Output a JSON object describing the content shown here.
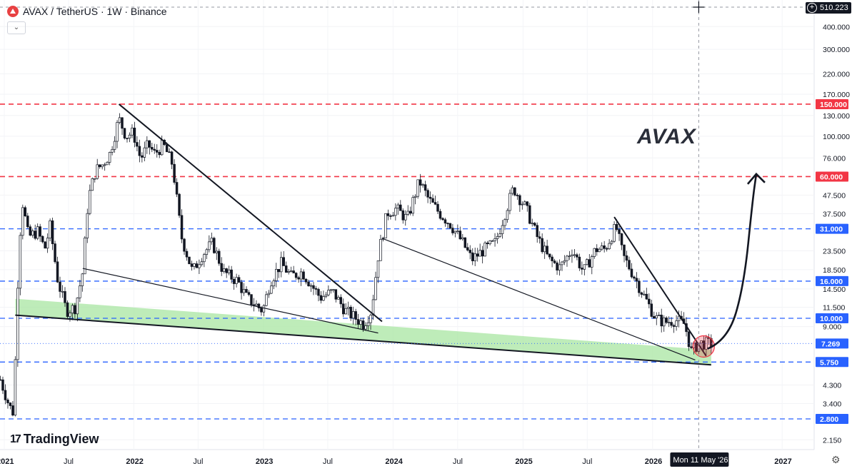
{
  "header": {
    "symbol": "AVAX",
    "separator": "/",
    "quote": "TetherUS",
    "interval": "1W",
    "exchange": "Binance",
    "title": "AVAX / TetherUS · 1W · Binance",
    "logo_color": "#e84142"
  },
  "collapse_label": "⌄",
  "watermark_text": "AVAX",
  "brand": {
    "mark": "17",
    "name": "TradingView"
  },
  "crosshair": {
    "price_label": "510.223",
    "date_label": "Mon 11 May '26"
  },
  "chart_data": {
    "type": "candlestick",
    "symbol": "AVAX/USDT",
    "interval": "1W",
    "y_scale": "log",
    "ylim": [
      1.9,
      560
    ],
    "y_ticks": [
      2.15,
      3.4,
      4.3,
      9.0,
      11.5,
      14.5,
      18.5,
      23.5,
      37.5,
      47.5,
      76.0,
      100.0,
      130.0,
      170.0,
      220.0,
      300.0,
      400.0
    ],
    "y_tick_labels": [
      "2.150",
      "3.400",
      "4.300",
      "9.000",
      "11.500",
      "14.500",
      "18.500",
      "23.500",
      "37.500",
      "47.500",
      "76.000",
      "100.000",
      "130.000",
      "170.000",
      "220.000",
      "300.000",
      "400.000"
    ],
    "xlim": [
      "2020-12-20",
      "2027-04-01"
    ],
    "x_ticks": [
      {
        "date": "2021-01-01",
        "label": "2021",
        "bold": true
      },
      {
        "date": "2021-07-01",
        "label": "Jul",
        "bold": false
      },
      {
        "date": "2022-01-01",
        "label": "2022",
        "bold": true
      },
      {
        "date": "2022-07-01",
        "label": "Jul",
        "bold": false
      },
      {
        "date": "2023-01-01",
        "label": "2023",
        "bold": true
      },
      {
        "date": "2023-07-01",
        "label": "Jul",
        "bold": false
      },
      {
        "date": "2024-01-01",
        "label": "2024",
        "bold": true
      },
      {
        "date": "2024-07-01",
        "label": "Jul",
        "bold": false
      },
      {
        "date": "2025-01-01",
        "label": "2025",
        "bold": true
      },
      {
        "date": "2025-07-01",
        "label": "Jul",
        "bold": false
      },
      {
        "date": "2026-01-01",
        "label": "2026",
        "bold": true
      },
      {
        "date": "2027-01-01",
        "label": "2027",
        "bold": true
      }
    ],
    "price_path": [
      [
        "2020-12-21",
        4.6
      ],
      [
        "2021-01-15",
        3.3
      ],
      [
        "2021-01-28",
        3.0
      ],
      [
        "2021-02-05",
        11.5
      ],
      [
        "2021-02-12",
        24
      ],
      [
        "2021-02-20",
        45
      ],
      [
        "2021-03-10",
        28
      ],
      [
        "2021-04-05",
        30
      ],
      [
        "2021-04-25",
        24
      ],
      [
        "2021-05-10",
        32
      ],
      [
        "2021-06-01",
        16
      ],
      [
        "2021-06-25",
        11
      ],
      [
        "2021-07-20",
        11.5
      ],
      [
        "2021-08-10",
        18
      ],
      [
        "2021-08-25",
        45
      ],
      [
        "2021-09-15",
        65
      ],
      [
        "2021-10-05",
        70
      ],
      [
        "2021-10-25",
        80
      ],
      [
        "2021-11-20",
        125
      ],
      [
        "2021-12-10",
        100
      ],
      [
        "2021-12-30",
        105
      ],
      [
        "2022-01-20",
        75
      ],
      [
        "2022-02-10",
        90
      ],
      [
        "2022-03-01",
        80
      ],
      [
        "2022-03-25",
        90
      ],
      [
        "2022-04-20",
        70
      ],
      [
        "2022-05-15",
        28
      ],
      [
        "2022-06-15",
        18
      ],
      [
        "2022-07-10",
        22
      ],
      [
        "2022-08-10",
        26
      ],
      [
        "2022-09-10",
        18
      ],
      [
        "2022-10-20",
        16
      ],
      [
        "2022-11-15",
        13
      ],
      [
        "2022-12-30",
        11
      ],
      [
        "2023-01-20",
        16
      ],
      [
        "2023-02-20",
        20
      ],
      [
        "2023-03-20",
        17
      ],
      [
        "2023-04-20",
        18
      ],
      [
        "2023-06-10",
        13
      ],
      [
        "2023-07-15",
        14
      ],
      [
        "2023-08-20",
        11
      ],
      [
        "2023-10-10",
        9.3
      ],
      [
        "2023-11-01",
        11
      ],
      [
        "2023-11-20",
        22
      ],
      [
        "2023-12-15",
        38
      ],
      [
        "2024-01-10",
        40
      ],
      [
        "2024-02-10",
        35
      ],
      [
        "2024-03-15",
        57
      ],
      [
        "2024-04-10",
        45
      ],
      [
        "2024-05-10",
        38
      ],
      [
        "2024-06-10",
        33
      ],
      [
        "2024-07-15",
        26
      ],
      [
        "2024-08-10",
        21
      ],
      [
        "2024-09-15",
        24
      ],
      [
        "2024-10-15",
        26
      ],
      [
        "2024-11-15",
        40
      ],
      [
        "2024-12-05",
        52
      ],
      [
        "2025-01-10",
        40
      ],
      [
        "2025-02-10",
        28
      ],
      [
        "2025-03-15",
        21
      ],
      [
        "2025-04-15",
        19
      ],
      [
        "2025-05-20",
        24
      ],
      [
        "2025-06-20",
        18
      ],
      [
        "2025-07-25",
        24
      ],
      [
        "2025-08-20",
        24
      ],
      [
        "2025-09-20",
        32
      ],
      [
        "2025-10-10",
        22
      ],
      [
        "2025-11-10",
        17
      ],
      [
        "2025-12-10",
        13
      ],
      [
        "2026-01-10",
        10
      ],
      [
        "2026-02-05",
        9.5
      ],
      [
        "2026-03-05",
        9.8
      ],
      [
        "2026-04-01",
        9.3
      ],
      [
        "2026-04-20",
        6.6
      ],
      [
        "2026-05-11",
        7.3
      ],
      [
        "2026-06-15",
        7.269
      ]
    ],
    "current_price": 7.269,
    "horizontal_levels": [
      {
        "value": 150.0,
        "label": "150.000",
        "color": "#f23645",
        "style": "dashed"
      },
      {
        "value": 60.0,
        "label": "60.000",
        "color": "#f23645",
        "style": "dashed"
      },
      {
        "value": 31.0,
        "label": "31.000",
        "color": "#2962ff",
        "style": "dashed"
      },
      {
        "value": 16.0,
        "label": "16.000",
        "color": "#2962ff",
        "style": "dashed"
      },
      {
        "value": 10.0,
        "label": "10.000",
        "color": "#2962ff",
        "style": "dashed"
      },
      {
        "value": 5.75,
        "label": "5.750",
        "color": "#2962ff",
        "style": "dashed"
      },
      {
        "value": 2.8,
        "label": "2.800",
        "color": "#2962ff",
        "style": "dashed"
      }
    ],
    "current_price_label": "7.269",
    "trendlines": [
      {
        "from": [
          "2021-11-20",
          150
        ],
        "to": [
          "2023-12-01",
          9.6
        ],
        "width": 2
      },
      {
        "from": [
          "2021-08-10",
          18.8
        ],
        "to": [
          "2023-11-20",
          8.3
        ],
        "width": 1.2
      },
      {
        "from": [
          "2023-12-01",
          27.5
        ],
        "to": [
          "2026-05-01",
          5.9
        ],
        "width": 1.2
      },
      {
        "from": [
          "2025-09-15",
          36
        ],
        "to": [
          "2026-06-01",
          6.2
        ],
        "width": 2
      },
      {
        "from": [
          "2021-02-01",
          10.4
        ],
        "to": [
          "2026-06-15",
          5.55
        ],
        "width": 2
      }
    ],
    "support_band": {
      "from": "2021-02-01",
      "to": "2026-06-15",
      "top_start": 12.8,
      "top_end": 6.7,
      "bottom_start": 10.4,
      "bottom_end": 5.55,
      "color": "#a8e6a1"
    },
    "highlight_circle": {
      "date": "2026-05-25",
      "value": 7.0,
      "color": "#f23645"
    },
    "projection_arrow": {
      "points": [
        [
          "2026-06-05",
          6.8
        ],
        [
          "2026-08-01",
          7.6
        ],
        [
          "2026-09-15",
          15
        ],
        [
          "2026-10-10",
          45
        ],
        [
          "2026-10-20",
          62
        ]
      ]
    },
    "crosshair_date": "2026-05-11",
    "colors": {
      "up": "#26a69a",
      "down": "#000000",
      "candle": "#131722",
      "grid": "#f0f3fa"
    }
  }
}
